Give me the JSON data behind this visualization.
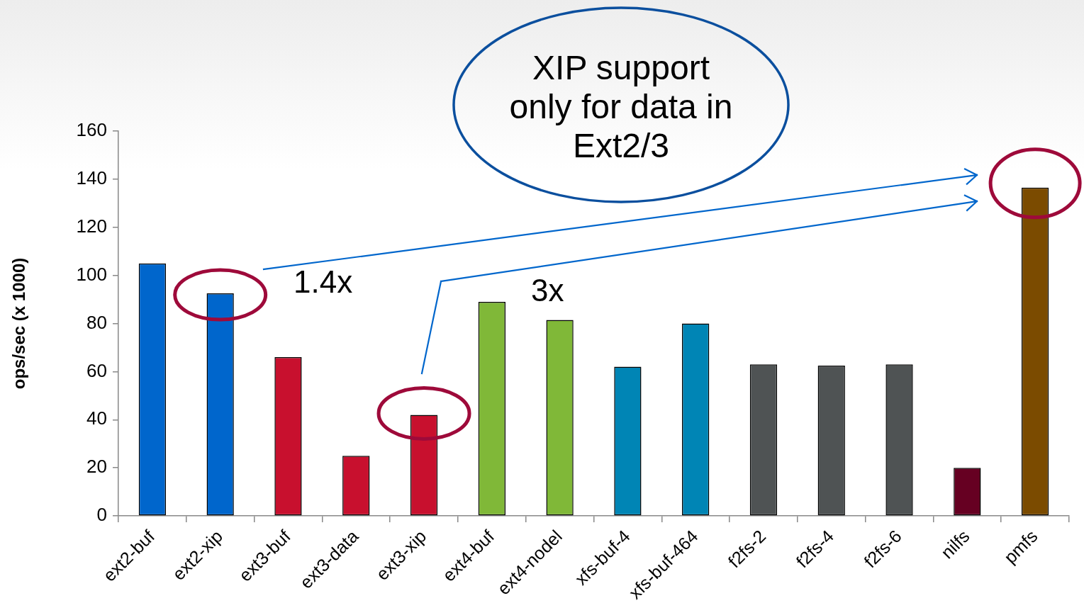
{
  "chart_data": {
    "type": "bar",
    "categories": [
      "ext2-buf",
      "ext2-xip",
      "ext3-buf",
      "ext3-data",
      "ext3-xip",
      "ext4-buf",
      "ext4-nodel",
      "xfs-buf-4",
      "xfs-buf-464",
      "f2fs-2",
      "f2fs-4",
      "f2fs-6",
      "nilfs",
      "pmfs"
    ],
    "values": [
      105,
      92.5,
      66,
      25,
      42,
      89,
      81.5,
      62,
      80,
      63,
      62.5,
      63,
      20,
      136.5
    ],
    "colors": [
      "#0066cc",
      "#0066cc",
      "#c8102e",
      "#c8102e",
      "#c8102e",
      "#80b838",
      "#80b838",
      "#0085b5",
      "#0085b5",
      "#4f5354",
      "#4f5354",
      "#4f5354",
      "#660022",
      "#7b4b00"
    ],
    "ylabel": "ops/sec (x 1000)",
    "ylim": [
      0,
      160
    ],
    "yticks": [
      0,
      20,
      40,
      60,
      80,
      100,
      120,
      140,
      160
    ],
    "grid": false,
    "legend": false,
    "annotations": [
      "XIP support only for data in Ext2/3",
      "1.4x",
      "3x"
    ]
  }
}
